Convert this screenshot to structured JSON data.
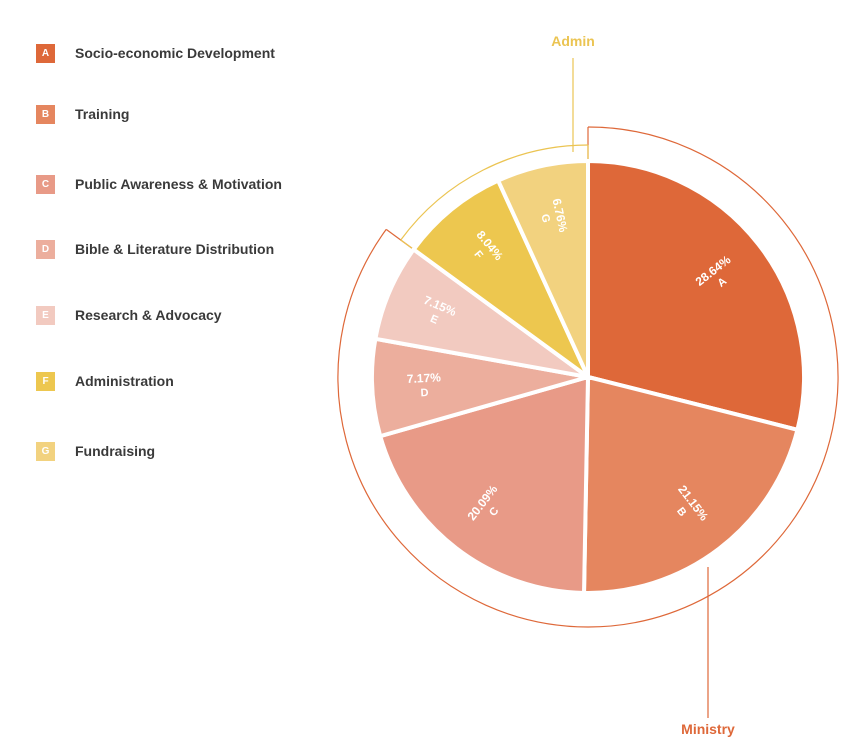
{
  "legend": [
    {
      "letter": "A",
      "label": "Socio-economic Development",
      "color": "#DE6839"
    },
    {
      "letter": "B",
      "label": "Training",
      "color": "#E5865F"
    },
    {
      "letter": "C",
      "label": "Public Awareness & Motivation",
      "color": "#E89A87"
    },
    {
      "letter": "D",
      "label": "Bible & Literature Distribution",
      "color": "#ECAE9D"
    },
    {
      "letter": "E",
      "label": "Research & Advocacy",
      "color": "#F2CAC0"
    },
    {
      "letter": "F",
      "label": "Administration",
      "color": "#EDC74F"
    },
    {
      "letter": "G",
      "label": "Fundraising",
      "color": "#F2D27F"
    }
  ],
  "chart_data": {
    "type": "pie",
    "slices": [
      {
        "letter": "A",
        "label": "Socio-economic Development",
        "value": 28.64,
        "value_label": "28.64%",
        "color": "#DE6839"
      },
      {
        "letter": "B",
        "label": "Training",
        "value": 21.15,
        "value_label": "21.15%",
        "color": "#E5865F"
      },
      {
        "letter": "C",
        "label": "Public Awareness & Motivation",
        "value": 20.09,
        "value_label": "20.09%",
        "color": "#E89A87"
      },
      {
        "letter": "D",
        "label": "Bible & Literature Distribution",
        "value": 7.17,
        "value_label": "7.17%",
        "color": "#ECAE9D"
      },
      {
        "letter": "E",
        "label": "Research & Advocacy",
        "value": 7.15,
        "value_label": "7.15%",
        "color": "#F2CAC0"
      },
      {
        "letter": "F",
        "label": "Administration",
        "value": 8.04,
        "value_label": "8.04%",
        "color": "#EDC74F"
      },
      {
        "letter": "G",
        "label": "Fundraising",
        "value": 6.76,
        "value_label": "6.76%",
        "color": "#F2D27F"
      }
    ],
    "groups": [
      {
        "label": "Ministry",
        "members": [
          "A",
          "B",
          "C",
          "D",
          "E"
        ],
        "color": "#DE6839"
      },
      {
        "label": "Admin",
        "members": [
          "F",
          "G"
        ],
        "color": "#EBC452"
      }
    ]
  }
}
